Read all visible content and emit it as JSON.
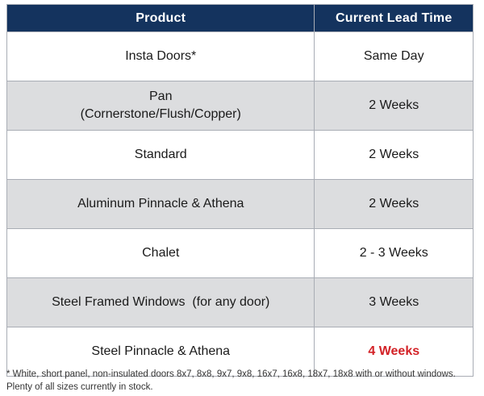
{
  "table": {
    "columns": [
      {
        "label": "Product"
      },
      {
        "label": "Current Lead Time"
      }
    ],
    "rows": [
      {
        "product": "Insta Doors*",
        "lead_time": "Same Day",
        "highlight": false
      },
      {
        "product": "Pan\n(Cornerstone/Flush/Copper)",
        "lead_time": "2 Weeks",
        "highlight": false
      },
      {
        "product": "Standard",
        "lead_time": "2 Weeks",
        "highlight": false
      },
      {
        "product": "Aluminum Pinnacle & Athena",
        "lead_time": "2 Weeks",
        "highlight": false
      },
      {
        "product": "Chalet",
        "lead_time": "2 - 3 Weeks",
        "highlight": false
      },
      {
        "product": "Steel Framed Windows  (for any door)",
        "lead_time": "3 Weeks",
        "highlight": false
      },
      {
        "product": "Steel Pinnacle & Athena",
        "lead_time": "4 Weeks",
        "highlight": true
      }
    ]
  },
  "footnote": {
    "line1": "* White, short panel, non-insulated doors 8x7, 8x8, 9x7, 9x8, 16x7, 16x8, 18x7, 18x8 with or without windows.",
    "line2": "Plenty of all sizes currently in stock."
  },
  "colors": {
    "header_bg": "#14335e",
    "header_text": "#ffffff",
    "row_bg": "#ffffff",
    "row_alt_bg": "#dcdddf",
    "border": "#a9adb5",
    "highlight_text": "#d32227"
  }
}
